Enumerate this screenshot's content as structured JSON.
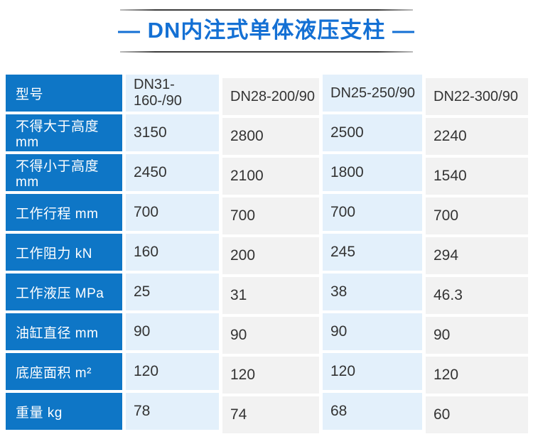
{
  "page": {
    "title": "— DN内注式单体液压支柱 —"
  },
  "colors": {
    "title_blue": "#1470d4",
    "header_blue": "#0e76c6",
    "light_blue_column": "#e3f0fb",
    "light_gray_column": "#f2f2f2",
    "data_text": "#333333",
    "divider_gray": "#3c3c3c"
  },
  "table": {
    "rows": [
      {
        "label": "型号",
        "values": [
          "DN31-160-/90",
          "DN28-200/90",
          "DN25-250/90",
          "DN22-300/90"
        ]
      },
      {
        "label": "不得大于高度 mm",
        "values": [
          "3150",
          "2800",
          "2500",
          "2240"
        ]
      },
      {
        "label": "不得小于高度 mm",
        "values": [
          "2450",
          "2100",
          "1800",
          "1540"
        ]
      },
      {
        "label": "工作行程 mm",
        "values": [
          "700",
          "700",
          "700",
          "700"
        ]
      },
      {
        "label": "工作阻力 kN",
        "values": [
          "160",
          "200",
          "245",
          "294"
        ]
      },
      {
        "label": "工作液压 MPa",
        "values": [
          "25",
          "31",
          "38",
          "46.3"
        ]
      },
      {
        "label": "油缸直径 mm",
        "values": [
          "90",
          "90",
          "90",
          "90"
        ]
      },
      {
        "label": "底座面积 m²",
        "values": [
          "120",
          "120",
          "120",
          "120"
        ]
      },
      {
        "label": "重量 kg",
        "values": [
          "78",
          "74",
          "68",
          "60"
        ]
      }
    ]
  }
}
